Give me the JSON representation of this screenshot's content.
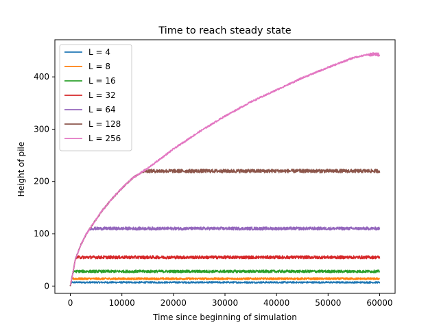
{
  "chart_data": {
    "type": "line",
    "title": "Time to reach steady state",
    "xlabel": "Time since beginning of simulation",
    "ylabel": "Height of pile",
    "xlim": [
      -3000,
      63000
    ],
    "ylim": [
      -14,
      471
    ],
    "xticks": [
      0,
      10000,
      20000,
      30000,
      40000,
      50000,
      60000
    ],
    "yticks": [
      0,
      100,
      200,
      300,
      400
    ],
    "grid": false,
    "legend_position": "top-left",
    "series": [
      {
        "name": "L = 4",
        "color": "#1f77b4",
        "steady": 7,
        "steps": 40,
        "noise": 1.5
      },
      {
        "name": "L = 8",
        "color": "#ff7f0e",
        "steady": 14,
        "steps": 200,
        "noise": 2
      },
      {
        "name": "L = 16",
        "color": "#2ca02c",
        "steady": 28,
        "steps": 700,
        "noise": 2.5
      },
      {
        "name": "L = 32",
        "color": "#d62728",
        "steady": 55,
        "steps": 1200,
        "noise": 3
      },
      {
        "name": "L = 64",
        "color": "#9467bd",
        "steady": 110,
        "steps": 4200,
        "noise": 3
      },
      {
        "name": "L = 128",
        "color": "#8c564b",
        "steady": 220,
        "steps": 15500,
        "noise": 3.5
      },
      {
        "name": "L = 256",
        "color": "#e377c2",
        "steady": 443,
        "steps": 60000,
        "noise": 3.5
      }
    ],
    "growth_curve": {
      "x": [
        0,
        1000,
        2000,
        3000,
        4000,
        6000,
        8000,
        10000,
        12000,
        15000,
        20000,
        25000,
        30000,
        35000,
        40000,
        45000,
        50000,
        55000,
        58000,
        60000
      ],
      "y": [
        0,
        52,
        78,
        98,
        113,
        142,
        166,
        187,
        206,
        225,
        262,
        295,
        325,
        352,
        375,
        398,
        418,
        437,
        443,
        443
      ]
    }
  }
}
